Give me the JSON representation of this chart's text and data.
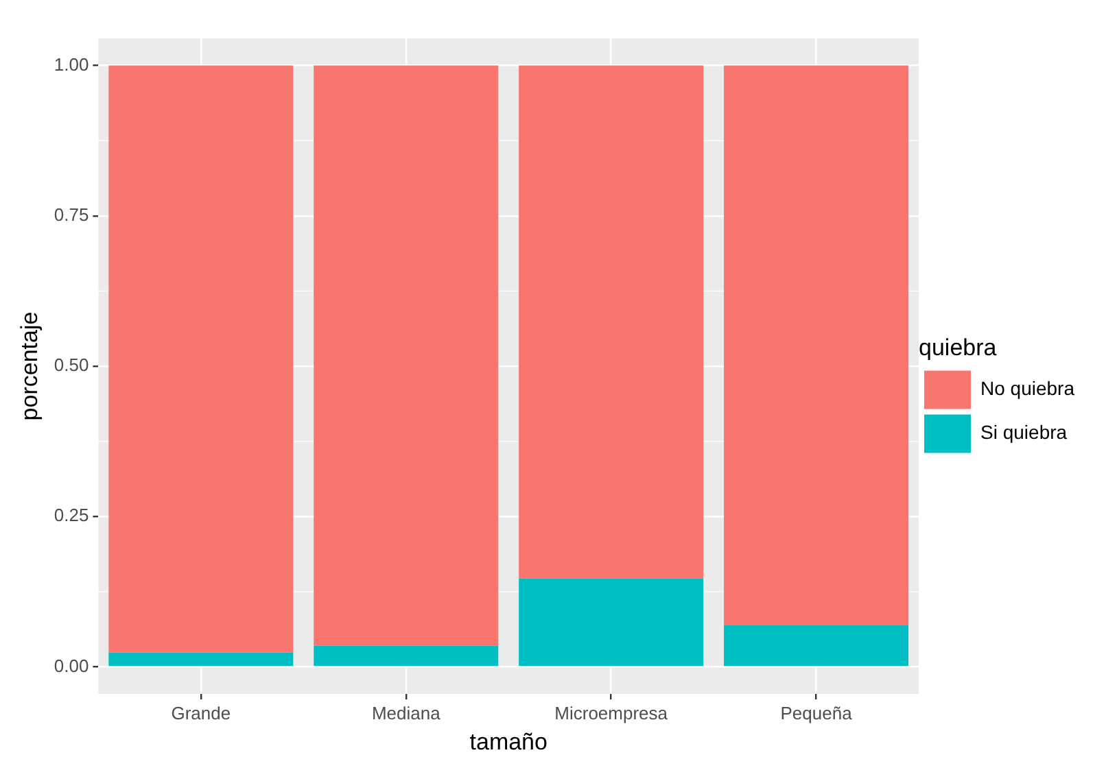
{
  "chart_data": {
    "type": "bar",
    "stacked": true,
    "xlabel": "tamaño",
    "ylabel": "porcentaje",
    "legend_title": "quiebra",
    "legend": "right",
    "categories": [
      "Grande",
      "Mediana",
      "Microempresa",
      "Pequeña"
    ],
    "series": [
      {
        "name": "Si quiebra",
        "color": "#00bfc4",
        "values": [
          0.024,
          0.035,
          0.147,
          0.07
        ]
      },
      {
        "name": "No quiebra",
        "color": "#f8766d",
        "values": [
          0.976,
          0.965,
          0.853,
          0.93
        ]
      }
    ],
    "ylim": [
      -0.045,
      1.045
    ],
    "yticks": [
      {
        "value": 0,
        "label": "0.00"
      },
      {
        "value": 0.25,
        "label": "0.25"
      },
      {
        "value": 0.5,
        "label": "0.50"
      },
      {
        "value": 0.75,
        "label": "0.75"
      },
      {
        "value": 1,
        "label": "1.00"
      }
    ],
    "grid": true
  }
}
